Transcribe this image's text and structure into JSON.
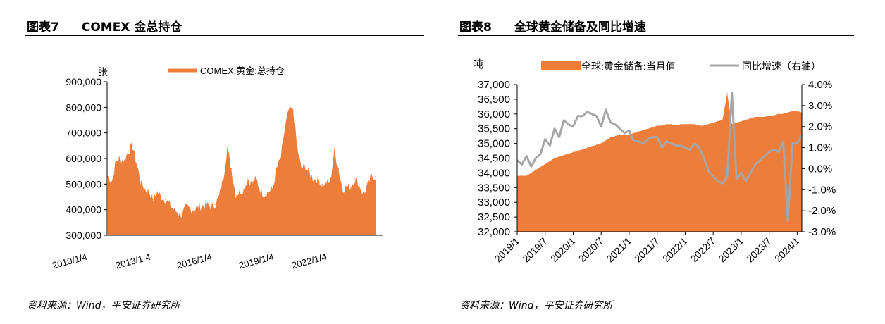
{
  "figures": [
    {
      "number": "图表7",
      "title": "COMEX 金总持仓",
      "source": "资料来源：Wind，平安证券研究所"
    },
    {
      "number": "图表8",
      "title": "全球黄金储备及同比增速",
      "source": "资料来源：Wind，平安证券研究所"
    }
  ],
  "chart_data": [
    {
      "type": "area",
      "unit_label": "张",
      "series": [
        {
          "name": "COMEX:黄金:总持仓",
          "color": "#ed7d3a",
          "points": [
            [
              "2010/1/4",
              530000
            ],
            [
              "2010/4",
              510000
            ],
            [
              "2010/7",
              590000
            ],
            [
              "2010/10",
              600000
            ],
            [
              "2011/1",
              590000
            ],
            [
              "2011/3",
              630000
            ],
            [
              "2011/5",
              650000
            ],
            [
              "2011/7",
              580000
            ],
            [
              "2011/9",
              510000
            ],
            [
              "2011/12",
              480000
            ],
            [
              "2012/3",
              470000
            ],
            [
              "2012/6",
              440000
            ],
            [
              "2012/9",
              470000
            ],
            [
              "2012/12",
              450000
            ],
            [
              "2013/2",
              440000
            ],
            [
              "2013/4",
              420000
            ],
            [
              "2013/7",
              400000
            ],
            [
              "2013/10",
              390000
            ],
            [
              "2014/1",
              380000
            ],
            [
              "2014/4",
              410000
            ],
            [
              "2014/7",
              405000
            ],
            [
              "2014/10",
              400000
            ],
            [
              "2015/1",
              410000
            ],
            [
              "2015/4",
              415000
            ],
            [
              "2015/7",
              420000
            ],
            [
              "2015/10",
              410000
            ],
            [
              "2016/1",
              420000
            ],
            [
              "2016/3",
              450000
            ],
            [
              "2016/5",
              520000
            ],
            [
              "2016/7",
              640000
            ],
            [
              "2016/9",
              560000
            ],
            [
              "2016/12",
              460000
            ],
            [
              "2017/3",
              470000
            ],
            [
              "2017/6",
              480000
            ],
            [
              "2017/9",
              520000
            ],
            [
              "2017/12",
              500000
            ],
            [
              "2018/3",
              520000
            ],
            [
              "2018/6",
              480000
            ],
            [
              "2018/9",
              460000
            ],
            [
              "2018/12",
              470000
            ],
            [
              "2019/3",
              480000
            ],
            [
              "2019/6",
              560000
            ],
            [
              "2019/8",
              600000
            ],
            [
              "2019/10",
              720000
            ],
            [
              "2019/12",
              790000
            ],
            [
              "2020/1",
              790000
            ],
            [
              "2020/3",
              640000
            ],
            [
              "2020/5",
              560000
            ],
            [
              "2020/8",
              570000
            ],
            [
              "2020/11",
              540000
            ],
            [
              "2021/2",
              520000
            ],
            [
              "2021/5",
              520000
            ],
            [
              "2021/8",
              500000
            ],
            [
              "2021/11",
              500000
            ],
            [
              "2022/1",
              510000
            ],
            [
              "2022/3",
              630000
            ],
            [
              "2022/5",
              560000
            ],
            [
              "2022/8",
              480000
            ],
            [
              "2022/11",
              490000
            ],
            [
              "2023/2",
              490000
            ],
            [
              "2023/4",
              520000
            ],
            [
              "2023/7",
              500000
            ],
            [
              "2023/10",
              460000
            ],
            [
              "2024/1",
              490000
            ],
            [
              "2024/3",
              530000
            ],
            [
              "2024/5",
              530000
            ]
          ]
        }
      ],
      "x_ticks": [
        "2010/1/4",
        "2013/1/4",
        "2016/1/4",
        "2019/1/4",
        "2022/1/4"
      ],
      "y_ticks": [
        "300,000",
        "400,000",
        "500,000",
        "600,000",
        "700,000",
        "800,000",
        "900,000"
      ],
      "ylim": [
        300000,
        900000
      ]
    },
    {
      "type": "area",
      "unit_label_left": "吨",
      "series": [
        {
          "name": "全球:黄金储备:当月值",
          "axis": "left",
          "kind": "area",
          "color": "#ed7d3a",
          "values": [
            33900,
            33900,
            33900,
            34000,
            34100,
            34200,
            34300,
            34400,
            34500,
            34550,
            34600,
            34650,
            34700,
            34750,
            34800,
            34850,
            34900,
            34950,
            35000,
            35100,
            35200,
            35250,
            35300,
            35300,
            35300,
            35350,
            35400,
            35450,
            35500,
            35550,
            35600,
            35600,
            35650,
            35650,
            35600,
            35650,
            35650,
            35650,
            35650,
            35600,
            35600,
            35650,
            35700,
            35750,
            35800,
            36700,
            35650,
            35700,
            35750,
            35800,
            35850,
            35900,
            35900,
            35900,
            35950,
            35950,
            36000,
            36000,
            36050,
            36100,
            36100,
            36050
          ]
        },
        {
          "name": "同比增速（右轴）",
          "axis": "right",
          "kind": "line",
          "color": "#a6a6a6",
          "values": [
            0.4,
            0.2,
            0.6,
            0.1,
            0.5,
            0.7,
            1.4,
            1.1,
            1.9,
            1.5,
            2.3,
            2.1,
            2.0,
            2.5,
            2.5,
            2.7,
            2.6,
            2.5,
            2.0,
            2.8,
            2.2,
            2.1,
            1.9,
            1.7,
            1.8,
            1.3,
            1.3,
            1.2,
            1.4,
            1.5,
            1.5,
            1.0,
            1.3,
            1.2,
            1.1,
            1.1,
            1.0,
            0.9,
            1.2,
            1.0,
            0.5,
            -0.1,
            -0.4,
            -0.6,
            -0.7,
            -0.4,
            3.6,
            -0.5,
            -0.2,
            -0.6,
            -0.2,
            0.2,
            0.4,
            0.6,
            0.8,
            0.9,
            0.8,
            1.3,
            -2.5,
            1.2,
            1.2,
            1.6
          ]
        }
      ],
      "x_ticks": [
        "2019/1",
        "2019/7",
        "2020/1",
        "2020/7",
        "2021/1",
        "2021/7",
        "2022/1",
        "2022/7",
        "2023/1",
        "2023/7",
        "2024/1"
      ],
      "y_left_ticks": [
        "32,000",
        "32,500",
        "33,000",
        "33,500",
        "34,000",
        "34,500",
        "35,000",
        "35,500",
        "36,000",
        "36,500",
        "37,000"
      ],
      "y_right_ticks": [
        "-3.0%",
        "-2.0%",
        "-1.0%",
        "0.0%",
        "1.0%",
        "2.0%",
        "3.0%",
        "4.0%"
      ],
      "ylim_left": [
        32000,
        37000
      ],
      "ylim_right": [
        -3.0,
        4.0
      ]
    }
  ]
}
